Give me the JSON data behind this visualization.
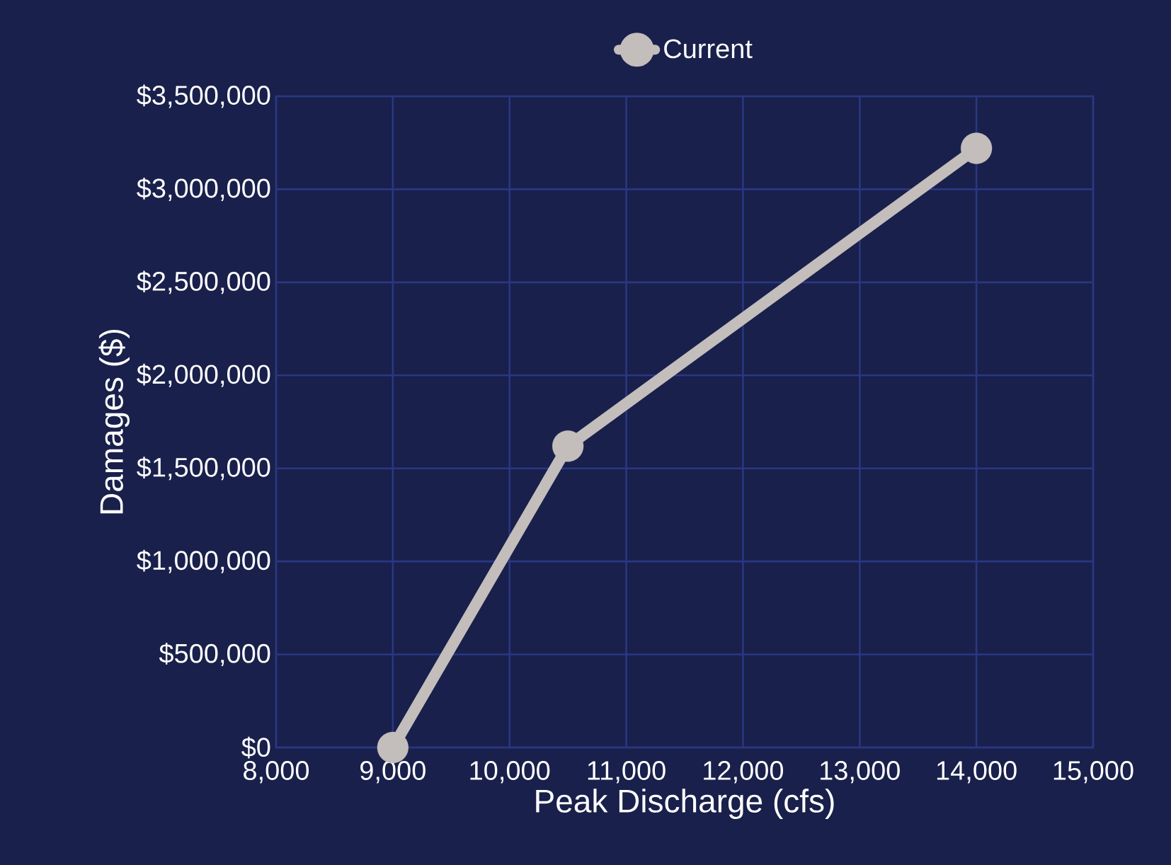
{
  "chart_data": {
    "type": "line",
    "xlabel": "Peak Discharge (cfs)",
    "ylabel": "Damages ($)",
    "x": [
      9000,
      10500,
      14000
    ],
    "series": [
      {
        "name": "Current",
        "color": "#c3bdbc",
        "values": [
          0,
          1620000,
          3220000
        ]
      }
    ],
    "xlim": [
      8000,
      15000
    ],
    "xticks": [
      {
        "value": 8000,
        "label": "8,000"
      },
      {
        "value": 9000,
        "label": "9,000"
      },
      {
        "value": 10000,
        "label": "10,000"
      },
      {
        "value": 11000,
        "label": "11,000"
      },
      {
        "value": 12000,
        "label": "12,000"
      },
      {
        "value": 13000,
        "label": "13,000"
      },
      {
        "value": 14000,
        "label": "14,000"
      },
      {
        "value": 15000,
        "label": "15,000"
      }
    ],
    "ylim": [
      0,
      3500000
    ],
    "yticks": [
      {
        "value": 0,
        "label": "$0"
      },
      {
        "value": 500000,
        "label": "$500,000"
      },
      {
        "value": 1000000,
        "label": "$1,000,000"
      },
      {
        "value": 1500000,
        "label": "$1,500,000"
      },
      {
        "value": 2000000,
        "label": "$2,000,000"
      },
      {
        "value": 2500000,
        "label": "$2,500,000"
      },
      {
        "value": 3000000,
        "label": "$3,000,000"
      },
      {
        "value": 3500000,
        "label": "$3,500,000"
      }
    ],
    "grid": true,
    "legend": "top",
    "marker": "circle",
    "line_style": "solid"
  }
}
